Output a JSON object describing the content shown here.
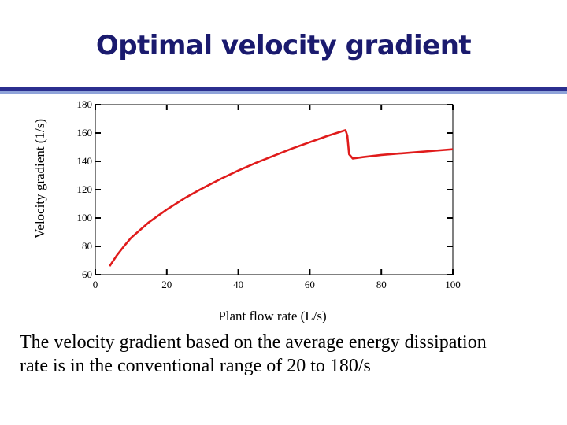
{
  "slide": {
    "title": "Optimal velocity gradient",
    "caption": "The velocity gradient based on the average energy dissipation rate is in the conventional range of 20 to 180/s"
  },
  "colors": {
    "title": "#1a1a6e",
    "rule": "#2b2f8f",
    "rule_light": "#8fa3d9",
    "curve": "#e01b1b"
  },
  "chart_data": {
    "type": "line",
    "title": "",
    "xlabel": "Plant flow rate (L/s)",
    "ylabel": "Velocity gradient (1/s)",
    "xlim": [
      0,
      100
    ],
    "ylim": [
      60,
      180
    ],
    "xticks": [
      0,
      20,
      40,
      60,
      80,
      100
    ],
    "yticks": [
      60,
      80,
      100,
      120,
      140,
      160,
      180
    ],
    "grid": false,
    "series": [
      {
        "x": [
          4,
          6,
          8,
          10,
          15,
          20,
          25,
          30,
          35,
          40,
          45,
          50,
          55,
          60,
          65,
          70,
          70.5,
          71,
          72,
          75,
          80,
          85,
          90,
          95,
          100
        ],
        "y": [
          66,
          73.5,
          80,
          86,
          97,
          106,
          114,
          121,
          127.5,
          133.5,
          139,
          144,
          149,
          153.5,
          158,
          162,
          158,
          145,
          142,
          143,
          144.5,
          145.5,
          146.5,
          147.5,
          148.5
        ]
      }
    ]
  }
}
